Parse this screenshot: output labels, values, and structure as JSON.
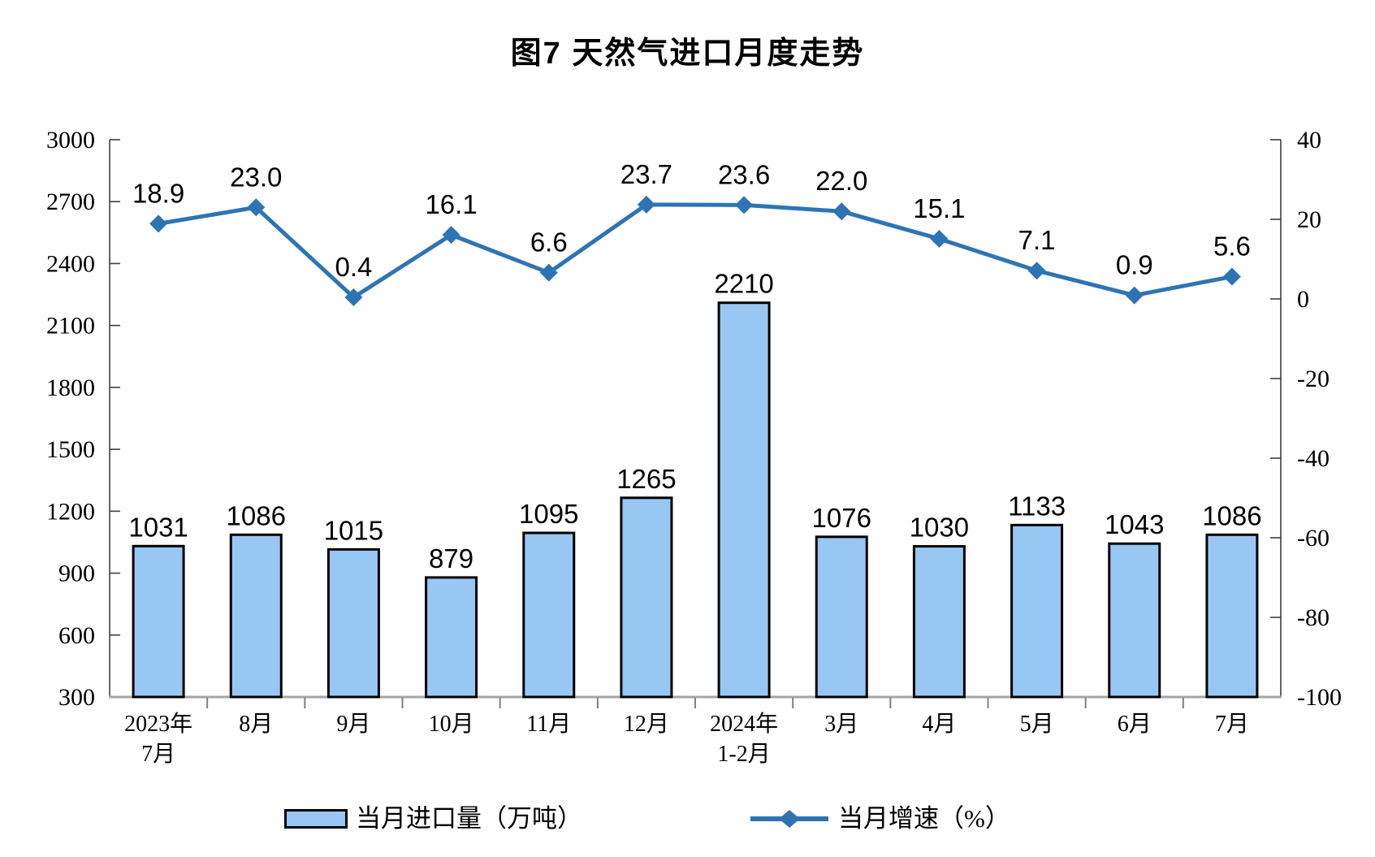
{
  "title": "图7 天然气进口月度走势",
  "legend": {
    "bar_label": "当月进口量（万吨）",
    "line_label": "当月增速（%）"
  },
  "colors": {
    "bar_fill": "#99C7F3",
    "bar_border": "#000000",
    "line": "#2E74B5",
    "y_axis": "#404040",
    "x_axis": "#A6A6A6",
    "x_tick": "#808080",
    "text": "#000000"
  },
  "chart_data": {
    "type": "bar",
    "subtype": "bar+line combo, dual y-axes",
    "title": "图7 天然气进口月度走势",
    "categories": [
      "2023年 7月",
      "8月",
      "9月",
      "10月",
      "11月",
      "12月",
      "2024年 1-2月",
      "3月",
      "4月",
      "5月",
      "6月",
      "7月"
    ],
    "category_lines": [
      [
        "2023年",
        "7月"
      ],
      [
        "8月"
      ],
      [
        "9月"
      ],
      [
        "10月"
      ],
      [
        "11月"
      ],
      [
        "12月"
      ],
      [
        "2024年",
        "1-2月"
      ],
      [
        "3月"
      ],
      [
        "4月"
      ],
      [
        "5月"
      ],
      [
        "6月"
      ],
      [
        "7月"
      ]
    ],
    "series": [
      {
        "name": "当月进口量（万吨）",
        "type": "bar",
        "axis": "left",
        "values": [
          1031,
          1086,
          1015,
          879,
          1095,
          1265,
          2210,
          1076,
          1030,
          1133,
          1043,
          1086
        ],
        "labels": [
          "1031",
          "1086",
          "1015",
          "879",
          "1095",
          "1265",
          "2210",
          "1076",
          "1030",
          "1133",
          "1043",
          "1086"
        ]
      },
      {
        "name": "当月增速（%）",
        "type": "line",
        "axis": "right",
        "marker": "diamond",
        "values": [
          18.9,
          23.0,
          0.4,
          16.1,
          6.6,
          23.7,
          23.6,
          22.0,
          15.1,
          7.1,
          0.9,
          5.6
        ],
        "labels": [
          "18.9",
          "23.0",
          "0.4",
          "16.1",
          "6.6",
          "23.7",
          "23.6",
          "22.0",
          "15.1",
          "7.1",
          "0.9",
          "5.6"
        ]
      }
    ],
    "left_axis": {
      "min": 300,
      "max": 3000,
      "step": 300,
      "ticks": [
        300,
        600,
        900,
        1200,
        1500,
        1800,
        2100,
        2400,
        2700,
        3000
      ]
    },
    "right_axis": {
      "min": -100,
      "max": 40,
      "step": 20,
      "ticks": [
        -100,
        -80,
        -60,
        -40,
        -20,
        0,
        20,
        40
      ]
    },
    "xlabel": "",
    "ylabel": "",
    "grid": false,
    "legend_position": "bottom"
  }
}
